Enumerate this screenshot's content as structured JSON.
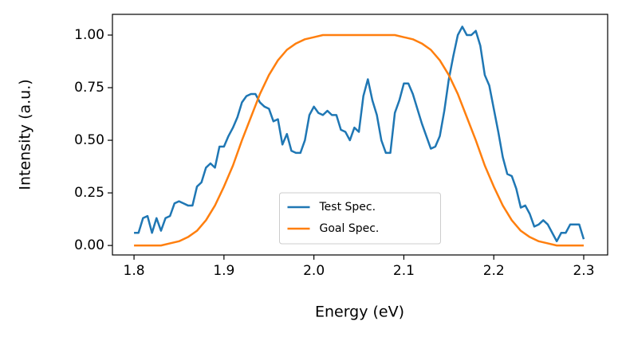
{
  "chart_data": {
    "type": "line",
    "xlabel": "Energy (eV)",
    "ylabel": "Intensity (a.u.)",
    "xlim": [
      1.776,
      2.3266
    ],
    "ylim": [
      -0.045,
      1.0985
    ],
    "xticks": [
      1.8,
      1.9,
      {
        "value": 2,
        "label": "2.0"
      },
      2.1,
      2.2,
      2.3
    ],
    "yticks": [
      {
        "value": 0,
        "label": "0.00"
      },
      {
        "value": 0.25,
        "label": "0.25"
      },
      {
        "value": 0.5,
        "label": "0.50"
      },
      {
        "value": 0.75,
        "label": "0.75"
      },
      {
        "value": 1,
        "label": "1.00"
      }
    ],
    "legend": "lower center",
    "series": [
      {
        "name": "Test Spec.",
        "color": "#1f77b4",
        "x": [
          1.8,
          1.805,
          1.81,
          1.815,
          1.82,
          1.825,
          1.83,
          1.835,
          1.84,
          1.845,
          1.85,
          1.855,
          1.86,
          1.865,
          1.87,
          1.875,
          1.88,
          1.885,
          1.89,
          1.895,
          1.9,
          1.905,
          1.91,
          1.915,
          1.92,
          1.925,
          1.93,
          1.935,
          1.94,
          1.945,
          1.95,
          1.955,
          1.96,
          1.965,
          1.97,
          1.975,
          1.98,
          1.985,
          1.99,
          1.995,
          2.0,
          2.005,
          2.01,
          2.015,
          2.02,
          2.025,
          2.03,
          2.035,
          2.04,
          2.045,
          2.05,
          2.055,
          2.06,
          2.065,
          2.07,
          2.075,
          2.08,
          2.085,
          2.09,
          2.095,
          2.1,
          2.105,
          2.11,
          2.115,
          2.12,
          2.125,
          2.13,
          2.135,
          2.14,
          2.145,
          2.15,
          2.155,
          2.16,
          2.165,
          2.17,
          2.175,
          2.18,
          2.185,
          2.19,
          2.195,
          2.2,
          2.205,
          2.21,
          2.215,
          2.22,
          2.225,
          2.23,
          2.235,
          2.24,
          2.245,
          2.25,
          2.255,
          2.26,
          2.265,
          2.27,
          2.275,
          2.28,
          2.285,
          2.29,
          2.295,
          2.3
        ],
        "values": [
          0.06,
          0.06,
          0.13,
          0.14,
          0.06,
          0.13,
          0.07,
          0.13,
          0.14,
          0.2,
          0.21,
          0.2,
          0.19,
          0.19,
          0.28,
          0.3,
          0.37,
          0.39,
          0.37,
          0.47,
          0.47,
          0.52,
          0.56,
          0.61,
          0.68,
          0.71,
          0.72,
          0.72,
          0.68,
          0.66,
          0.65,
          0.59,
          0.6,
          0.48,
          0.53,
          0.45,
          0.44,
          0.44,
          0.5,
          0.62,
          0.66,
          0.63,
          0.62,
          0.64,
          0.62,
          0.62,
          0.55,
          0.54,
          0.5,
          0.56,
          0.54,
          0.71,
          0.79,
          0.69,
          0.62,
          0.5,
          0.44,
          0.44,
          0.63,
          0.69,
          0.77,
          0.77,
          0.72,
          0.65,
          0.58,
          0.52,
          0.46,
          0.47,
          0.52,
          0.64,
          0.79,
          0.9,
          1.0,
          1.04,
          1.0,
          1.0,
          1.02,
          0.95,
          0.81,
          0.76,
          0.65,
          0.54,
          0.42,
          0.34,
          0.33,
          0.27,
          0.18,
          0.19,
          0.15,
          0.09,
          0.1,
          0.12,
          0.1,
          0.06,
          0.02,
          0.06,
          0.06,
          0.1,
          0.1,
          0.1,
          0.03
        ]
      },
      {
        "name": "Goal Spec.",
        "color": "#ff7f0e",
        "x": [
          1.8,
          1.81,
          1.82,
          1.83,
          1.84,
          1.85,
          1.86,
          1.87,
          1.88,
          1.89,
          1.9,
          1.91,
          1.92,
          1.93,
          1.94,
          1.95,
          1.96,
          1.97,
          1.98,
          1.99,
          2.0,
          2.01,
          2.02,
          2.03,
          2.04,
          2.05,
          2.06,
          2.07,
          2.08,
          2.09,
          2.1,
          2.11,
          2.12,
          2.13,
          2.14,
          2.15,
          2.16,
          2.17,
          2.18,
          2.19,
          2.2,
          2.21,
          2.22,
          2.23,
          2.24,
          2.25,
          2.26,
          2.27,
          2.28,
          2.29,
          2.3
        ],
        "values": [
          0,
          0,
          0,
          0,
          0.01,
          0.02,
          0.04,
          0.07,
          0.12,
          0.19,
          0.28,
          0.38,
          0.5,
          0.61,
          0.72,
          0.81,
          0.88,
          0.93,
          0.96,
          0.98,
          0.99,
          1,
          1,
          1,
          1,
          1,
          1,
          1,
          1,
          1,
          0.99,
          0.98,
          0.96,
          0.93,
          0.88,
          0.81,
          0.72,
          0.61,
          0.5,
          0.38,
          0.28,
          0.19,
          0.12,
          0.07,
          0.04,
          0.02,
          0.01,
          0,
          0,
          0,
          0
        ]
      }
    ]
  }
}
